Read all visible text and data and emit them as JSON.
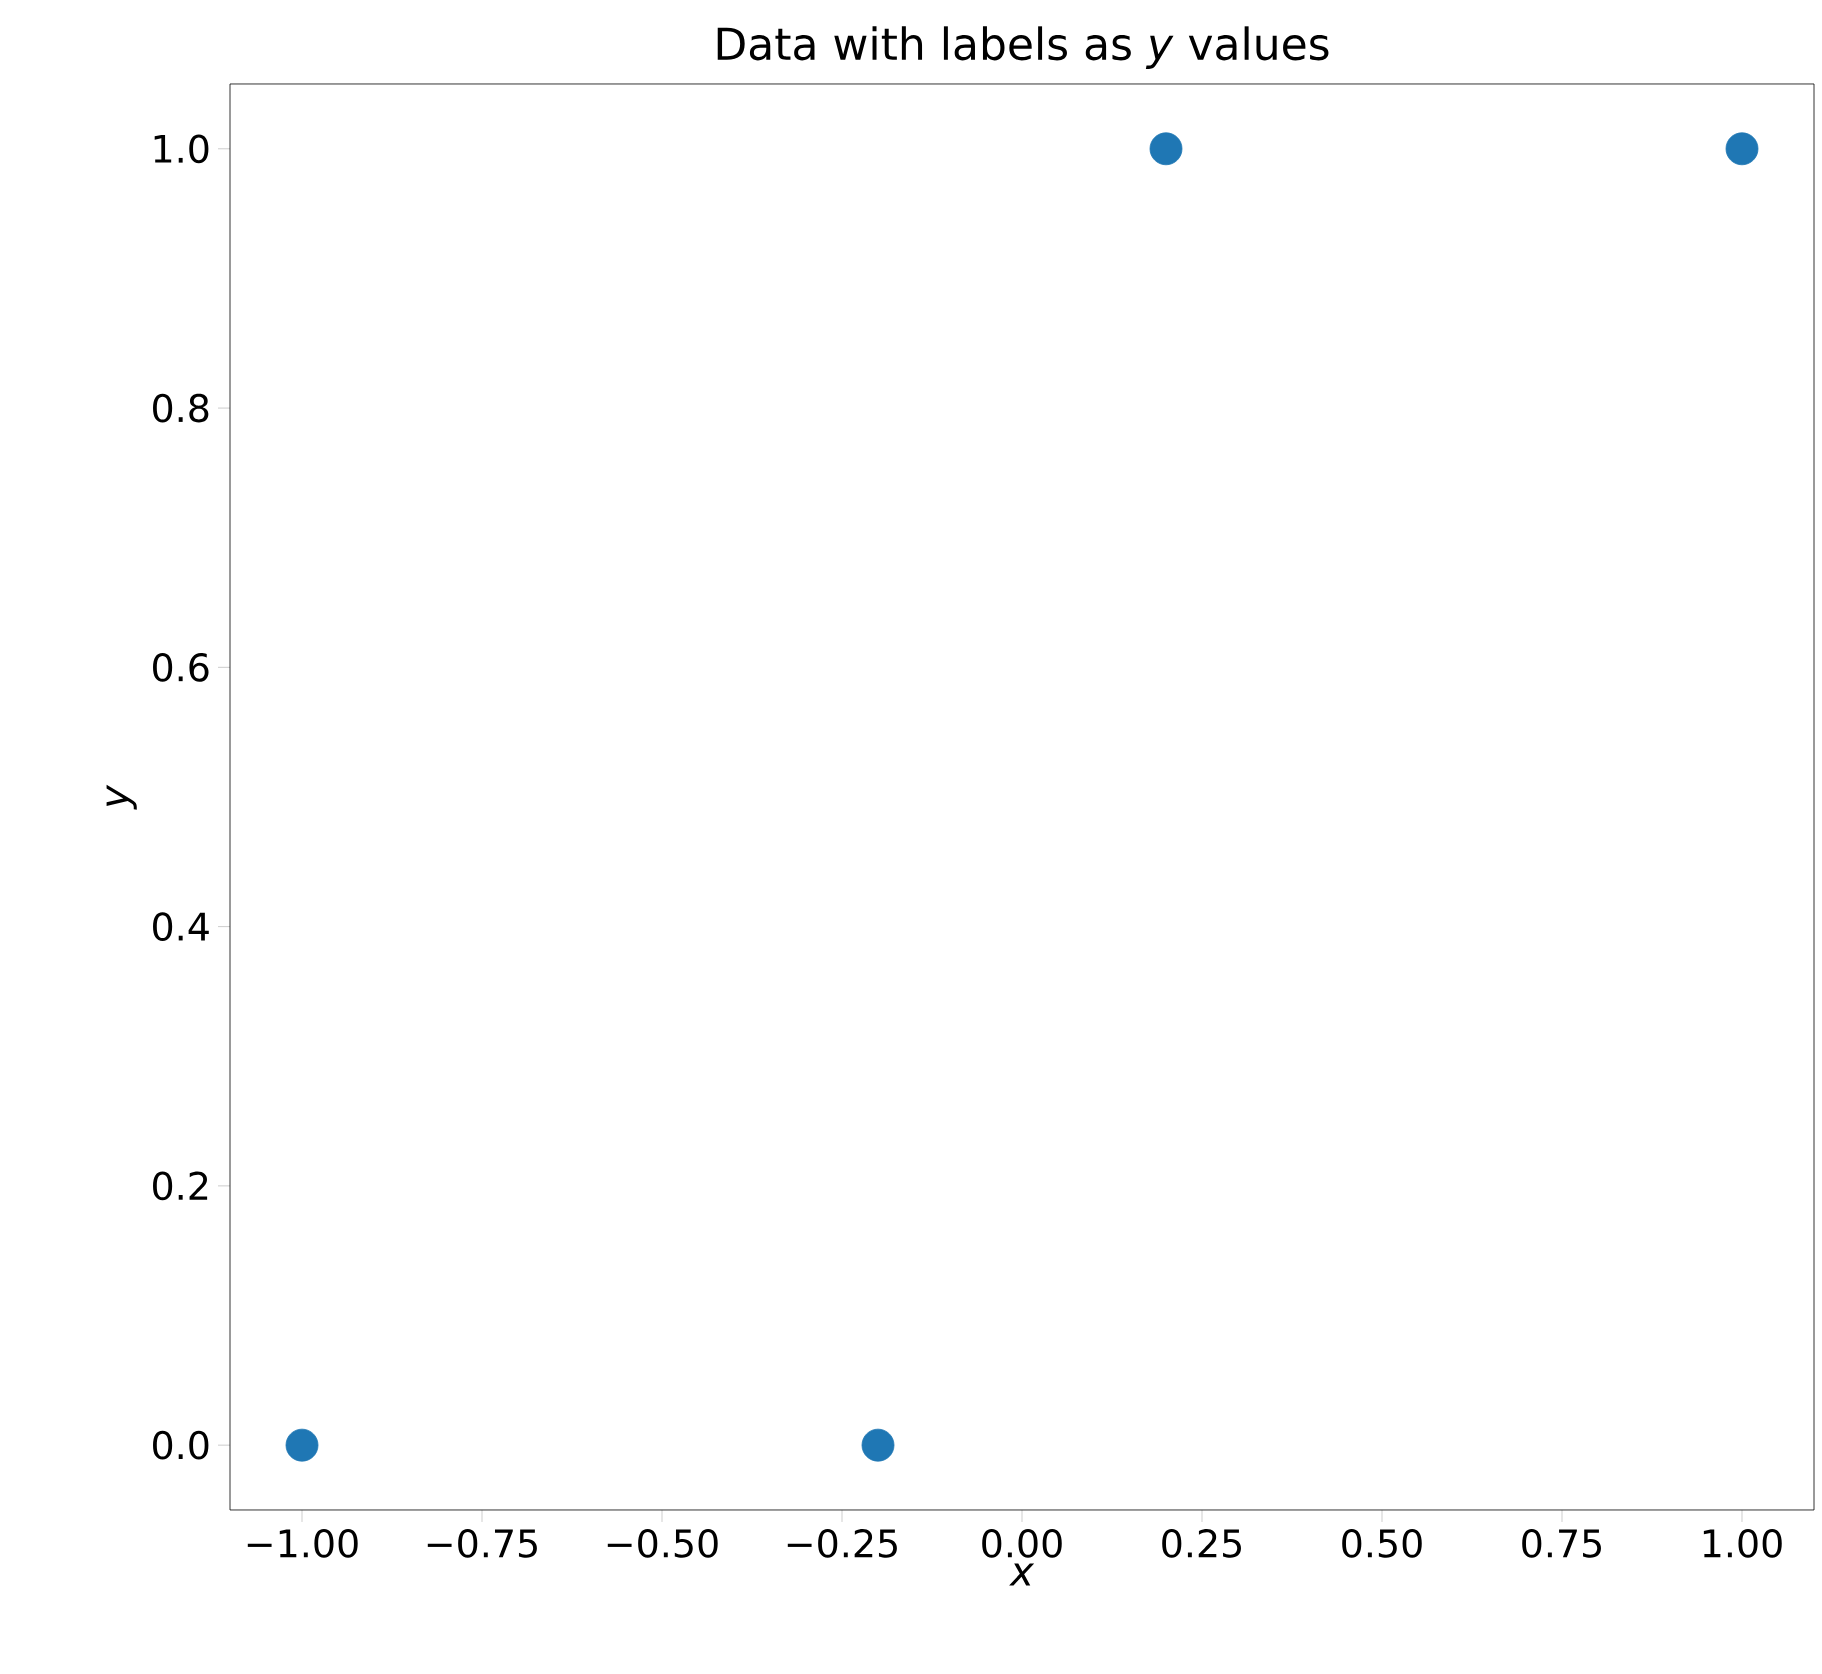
{
  "chart_data": {
    "type": "scatter",
    "title": "Data with labels as *y* values",
    "xlabel": "x",
    "ylabel": "y",
    "x": [
      -1.0,
      -0.2,
      0.2,
      1.0
    ],
    "series": [
      {
        "color": "#1f77b4",
        "values": [
          0,
          0,
          1,
          1
        ]
      }
    ],
    "marker": "circle",
    "xlim": [
      -1.1,
      1.1
    ],
    "ylim": [
      -0.05,
      1.05
    ],
    "xticks": [
      {
        "value": -1.0,
        "label": "−1.00"
      },
      {
        "value": -0.75,
        "label": "−0.75"
      },
      {
        "value": -0.5,
        "label": "−0.50"
      },
      {
        "value": -0.25,
        "label": "−0.25"
      },
      {
        "value": 0.0,
        "label": "0.00"
      },
      {
        "value": 0.25,
        "label": "0.25"
      },
      {
        "value": 0.5,
        "label": "0.50"
      },
      {
        "value": 0.75,
        "label": "0.75"
      },
      {
        "value": 1.0,
        "label": "1.00"
      }
    ],
    "yticks": [
      {
        "value": 0.0,
        "label": "0.0"
      },
      {
        "value": 0.2,
        "label": "0.2"
      },
      {
        "value": 0.4,
        "label": "0.4"
      },
      {
        "value": 0.6,
        "label": "0.6"
      },
      {
        "value": 0.8,
        "label": "0.8"
      },
      {
        "value": 1.0,
        "label": "1.0"
      }
    ]
  }
}
